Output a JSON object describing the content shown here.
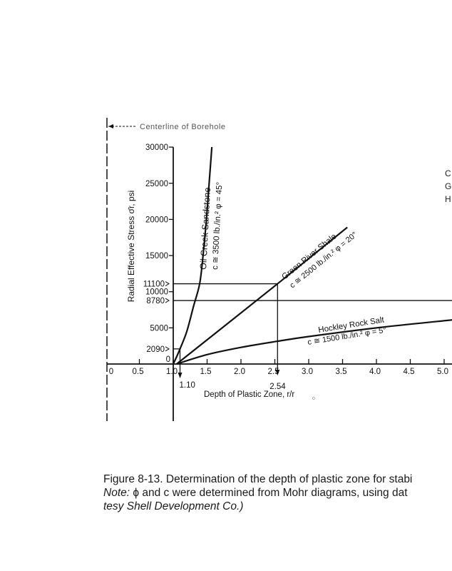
{
  "chart_data": {
    "type": "line",
    "title": "",
    "annotation_top": "Centerline of Borehole",
    "xlabel": "Depth of Plastic Zone, r/r",
    "xlabel_sub": "o",
    "ylabel": "Radial Effective Stress σ̄r, psi",
    "xlim": [
      0,
      5.0
    ],
    "ylim": [
      0,
      30000
    ],
    "x_ticks": [
      0,
      0.5,
      1.0,
      1.5,
      2.0,
      2.5,
      3.0,
      3.5,
      4.0,
      4.5,
      5.0
    ],
    "x_tick_labels": [
      "0",
      "0.5",
      "1.0",
      "1.5",
      "2.0",
      "2.5",
      "3.0",
      "3.5",
      "4.0",
      "4.5",
      "5.0"
    ],
    "y_ticks": [
      0,
      5000,
      10000,
      15000,
      20000,
      25000,
      30000
    ],
    "y_tick_labels": [
      "0",
      "5000",
      "10000",
      "15000",
      "20000",
      "25000",
      "30000"
    ],
    "y_marked_values": [
      {
        "value": 11100,
        "label": "11100"
      },
      {
        "value": 8780,
        "label": "8780"
      },
      {
        "value": 2090,
        "label": "2090"
      }
    ],
    "x_marked_values": [
      {
        "value": 1.1,
        "label": "1.10"
      },
      {
        "value": 2.54,
        "label": "2.54"
      }
    ],
    "series": [
      {
        "name": "Oil Creek Sandstone",
        "params": "c ≅ 3500 lb./in.² φ = 45°",
        "x": [
          1.0,
          1.05,
          1.1,
          1.2,
          1.3,
          1.39,
          1.44,
          1.49,
          1.53,
          1.57
        ],
        "y": [
          0,
          1000,
          2090,
          4500,
          8000,
          11100,
          15000,
          20000,
          25000,
          30000
        ]
      },
      {
        "name": "Green River Shale",
        "params": "c ≅ 2500 lb./in.² φ = 20°",
        "x": [
          1.05,
          2.54,
          3.57
        ],
        "y": [
          0,
          11100,
          18900
        ]
      },
      {
        "name": "Hockley Rock Salt",
        "params": "c ≅ 1500 lb./in.² φ = 5°",
        "x": [
          1.05,
          1.5,
          2.0,
          2.54,
          3.0,
          4.0,
          5.12
        ],
        "y": [
          0,
          1300,
          2300,
          3150,
          3800,
          5000,
          6100
        ]
      }
    ]
  },
  "legend_stub": [
    "C",
    "G",
    "H"
  ],
  "caption": {
    "line1": "Figure 8-13. Determination of the depth of plastic zone for stabi",
    "note_label": "Note:",
    "line2_rest": " ϕ and c were determined from Mohr diagrams, using dat",
    "line3": "tesy Shell Development Co.)"
  }
}
